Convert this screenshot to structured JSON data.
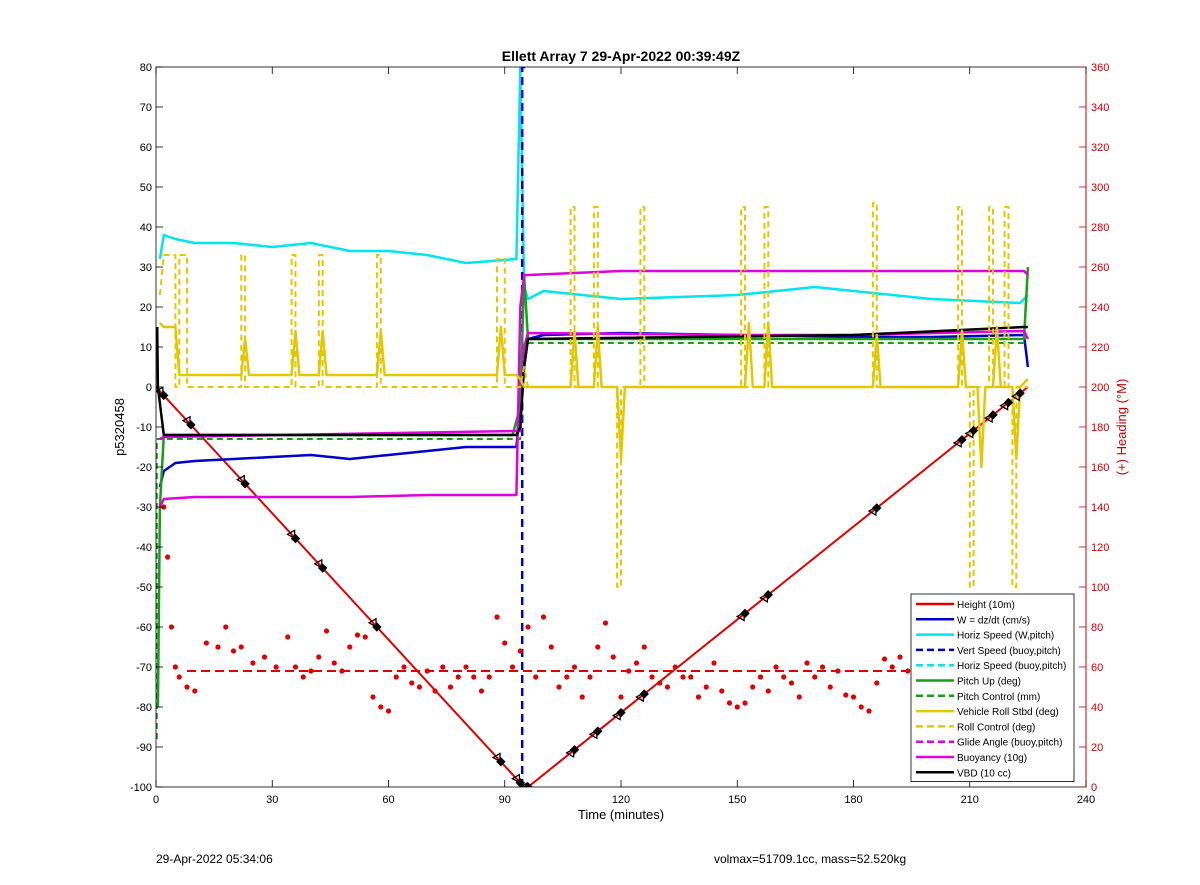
{
  "chart_data": {
    "type": "line",
    "title": "Ellett Array 7 29-Apr-2022 00:39:49Z",
    "xlabel": "Time (minutes)",
    "ylabel_left": "p5320458",
    "ylabel_right": "(+) Heading (°M)",
    "xlim": [
      0,
      240
    ],
    "ylim_left": [
      -100,
      80
    ],
    "ylim_right": [
      0,
      360
    ],
    "x_ticks": [
      "0",
      "30",
      "60",
      "90",
      "120",
      "150",
      "180",
      "210",
      "240"
    ],
    "y_ticks_left": [
      "-100",
      "-90",
      "-80",
      "-70",
      "-60",
      "-50",
      "-40",
      "-30",
      "-20",
      "-10",
      "0",
      "10",
      "20",
      "30",
      "40",
      "50",
      "60",
      "70",
      "80"
    ],
    "y_ticks_right": [
      "0",
      "20",
      "40",
      "60",
      "80",
      "100",
      "120",
      "140",
      "160",
      "180",
      "200",
      "220",
      "240",
      "260",
      "280",
      "300",
      "320",
      "340",
      "360"
    ],
    "grid": false,
    "legend_position": "bottom-right",
    "colors": {
      "red": "#e00000",
      "blue": "#0000cc",
      "cyan": "#00e5ee",
      "green": "#1a9e1a",
      "yellow": "#e5c700",
      "magenta": "#e000e0",
      "black": "#000000",
      "right_axis": "#cc0000"
    },
    "legend": [
      {
        "label": "Height (10m)",
        "color": "#e00000",
        "dashed": false
      },
      {
        "label": "W = dz/dt (cm/s)",
        "color": "#0000cc",
        "dashed": false
      },
      {
        "label": "Horiz Speed (W,pitch)",
        "color": "#00e5ee",
        "dashed": false
      },
      {
        "label": "Vert Speed (buoy,pitch)",
        "color": "#0000cc",
        "dashed": true
      },
      {
        "label": "Horiz Speed (buoy,pitch)",
        "color": "#00e5ee",
        "dashed": true
      },
      {
        "label": "Pitch Up (deg)",
        "color": "#1a9e1a",
        "dashed": false
      },
      {
        "label": "Pitch Control (mm)",
        "color": "#1a9e1a",
        "dashed": true
      },
      {
        "label": "Vehicle Roll Stbd (deg)",
        "color": "#e5c700",
        "dashed": false
      },
      {
        "label": "Roll Control (deg)",
        "color": "#e5c700",
        "dashed": true
      },
      {
        "label": "Glide Angle (buoy,pitch)",
        "color": "#e000e0",
        "dashed": true
      },
      {
        "label": "Buoyancy (10g)",
        "color": "#e000e0",
        "dashed": false
      },
      {
        "label": "VBD (10 cc)",
        "color": "#000000",
        "dashed": false
      }
    ],
    "series": [
      {
        "name": "Height (10m)",
        "color": "#e00000",
        "width": 2,
        "dash": "",
        "x": [
          0,
          95,
          96,
          225
        ],
        "y": [
          0,
          -100,
          -100,
          0
        ]
      },
      {
        "name": "W = dz/dt (cm/s)",
        "color": "#0000cc",
        "width": 2.5,
        "dash": "",
        "x": [
          1,
          2,
          5,
          10,
          20,
          30,
          40,
          50,
          60,
          70,
          80,
          93,
          95,
          96,
          100,
          120,
          150,
          180,
          200,
          224,
          225
        ],
        "y": [
          -25,
          -21,
          -19,
          -18.5,
          -18,
          -17.5,
          -17,
          -18,
          -17,
          -16,
          -15,
          -15,
          5,
          12,
          13,
          13.5,
          13,
          12.5,
          12.5,
          13,
          5
        ]
      },
      {
        "name": "Horiz Speed (W,pitch)",
        "color": "#00e5ee",
        "width": 2.5,
        "dash": "",
        "x": [
          1,
          2,
          5,
          10,
          20,
          30,
          40,
          50,
          60,
          70,
          80,
          93,
          94,
          95,
          96,
          100,
          120,
          150,
          170,
          180,
          200,
          223,
          225
        ],
        "y": [
          32,
          38,
          37,
          36,
          36,
          35,
          36,
          34,
          34,
          33,
          31,
          32,
          80,
          25,
          22,
          24,
          22,
          23,
          25,
          24,
          22,
          21,
          23
        ]
      },
      {
        "name": "Vert Speed (buoy,pitch)",
        "color": "#0000cc",
        "width": 2.5,
        "dash": "8,5",
        "x": [
          94.5,
          94.5,
          95.5
        ],
        "y": [
          -100,
          80,
          80
        ]
      },
      {
        "name": "Pitch Up (deg)",
        "color": "#1a9e1a",
        "width": 2.5,
        "dash": "",
        "x": [
          0.5,
          1,
          2,
          5,
          20,
          50,
          80,
          92,
          94,
          95,
          96,
          100,
          150,
          180,
          224,
          225
        ],
        "y": [
          -80,
          -30,
          -12,
          -12,
          -12,
          -12,
          -12,
          -12,
          -5,
          28,
          12,
          12,
          12,
          12,
          12,
          30
        ]
      },
      {
        "name": "Pitch Control (mm)",
        "color": "#1a9e1a",
        "width": 2,
        "dash": "6,4",
        "x": [
          0.2,
          0.2,
          2,
          94,
          95,
          96,
          224
        ],
        "y": [
          -88,
          -13,
          -13,
          -13,
          8,
          11,
          11
        ]
      },
      {
        "name": "Glide Angle (buoy,pitch)",
        "color": "#e000e0",
        "width": 2.5,
        "dash": "",
        "x": [
          1,
          2,
          10,
          30,
          50,
          70,
          92,
          93,
          94,
          95,
          96,
          120,
          150,
          180,
          224,
          225
        ],
        "y": [
          -30,
          -28,
          -27.5,
          -27.5,
          -27.5,
          -27,
          -27,
          -27,
          20,
          28,
          28,
          29,
          29,
          29,
          29,
          28
        ]
      },
      {
        "name": "Buoyancy (10g)",
        "color": "#e000e0",
        "width": 2.5,
        "dash": "",
        "x": [
          1,
          2,
          93,
          94,
          95,
          96,
          150,
          180,
          224,
          225
        ],
        "y": [
          -13,
          -12.5,
          -11,
          -11,
          10,
          13.5,
          13,
          13,
          14,
          12
        ]
      },
      {
        "name": "VBD (10 cc)",
        "color": "#000000",
        "width": 2.5,
        "dash": "",
        "x": [
          0.3,
          0.5,
          2,
          93,
          94,
          95,
          96,
          180,
          224,
          225
        ],
        "y": [
          15,
          0,
          -12,
          -12,
          -10,
          5,
          12,
          13,
          15,
          15
        ]
      },
      {
        "name": "Vehicle Roll Stbd (deg)",
        "color": "#e5c700",
        "width": 2.5,
        "dash": "",
        "x": [
          1,
          2,
          5,
          6,
          7,
          8,
          22,
          23,
          24,
          35,
          36,
          37,
          42,
          43,
          44,
          57,
          58,
          59,
          88,
          89,
          90,
          93,
          94,
          95,
          96,
          107,
          108,
          109,
          113,
          114,
          115,
          119,
          120,
          121,
          152,
          153,
          154,
          157,
          158,
          159,
          185,
          186,
          187,
          207,
          208,
          209,
          212,
          213,
          214,
          216,
          217,
          218,
          221,
          222,
          223,
          225
        ],
        "y": [
          16,
          15,
          15,
          3,
          3,
          3,
          3,
          12,
          3,
          3,
          14,
          3,
          3,
          14,
          3,
          3,
          14,
          3,
          3,
          15,
          3,
          3,
          2,
          0,
          0,
          0,
          14,
          0,
          0,
          15,
          0,
          0,
          -18,
          0,
          0,
          16,
          0,
          0,
          16,
          0,
          0,
          13,
          0,
          0,
          14,
          0,
          0,
          -20,
          0,
          0,
          15,
          0,
          0,
          -18,
          0,
          2
        ]
      },
      {
        "name": "Roll Control (deg)",
        "color": "#e5c700",
        "width": 2,
        "dash": "6,4",
        "x": [
          1,
          2,
          5,
          5,
          6,
          6,
          8,
          8,
          9,
          9,
          22,
          22,
          23,
          23,
          35,
          35,
          36,
          36,
          42,
          42,
          43,
          43,
          57,
          57,
          58,
          58,
          88,
          88,
          90,
          90,
          93,
          94,
          95,
          96,
          107,
          107,
          108,
          108,
          113,
          113,
          114,
          114,
          119,
          119,
          120,
          120,
          125,
          125,
          126,
          126,
          151,
          151,
          152,
          152,
          157,
          157,
          158,
          158,
          185,
          185,
          186,
          186,
          207,
          207,
          208,
          208,
          210,
          210,
          211,
          211,
          215,
          215,
          216,
          216,
          219,
          219,
          220,
          220,
          221,
          221,
          222,
          222,
          225
        ],
        "y": [
          23,
          33,
          33,
          0,
          0,
          33,
          33,
          0,
          0,
          0,
          0,
          33,
          33,
          0,
          0,
          33,
          33,
          0,
          0,
          33,
          33,
          0,
          0,
          33,
          33,
          0,
          0,
          32,
          32,
          0,
          0,
          0,
          5,
          0,
          0,
          45,
          45,
          0,
          0,
          45,
          45,
          0,
          0,
          -50,
          -50,
          0,
          0,
          45,
          45,
          0,
          0,
          45,
          45,
          0,
          0,
          45,
          45,
          0,
          0,
          46,
          46,
          0,
          0,
          45,
          45,
          0,
          0,
          -50,
          -50,
          0,
          0,
          45,
          45,
          0,
          0,
          45,
          45,
          0,
          0,
          -50,
          -50,
          0,
          0
        ]
      }
    ],
    "heading_series": {
      "name": "(+) Heading (°M)",
      "color": "#e00000",
      "x": [
        2,
        3,
        4,
        5,
        6,
        8,
        10,
        13,
        16,
        18,
        20,
        22,
        25,
        28,
        31,
        34,
        36,
        38,
        40,
        42,
        44,
        46,
        48,
        50,
        52,
        54,
        56,
        58,
        60,
        62,
        64,
        66,
        68,
        70,
        72,
        74,
        76,
        78,
        80,
        82,
        84,
        86,
        88,
        90,
        92,
        94,
        96,
        98,
        100,
        102,
        104,
        106,
        108,
        110,
        112,
        114,
        116,
        118,
        120,
        122,
        124,
        126,
        128,
        130,
        132,
        134,
        136,
        138,
        140,
        142,
        144,
        146,
        148,
        150,
        152,
        154,
        156,
        158,
        160,
        162,
        164,
        166,
        168,
        170,
        172,
        174,
        176,
        178,
        180,
        182,
        184,
        186,
        188,
        190,
        192,
        194,
        196,
        198,
        200,
        202,
        204,
        206,
        208,
        210,
        212,
        214,
        216,
        218,
        220,
        222,
        224
      ],
      "y": [
        140,
        115,
        80,
        60,
        55,
        50,
        48,
        72,
        70,
        80,
        68,
        70,
        62,
        65,
        60,
        75,
        60,
        55,
        58,
        65,
        78,
        62,
        58,
        70,
        76,
        75,
        45,
        40,
        38,
        55,
        60,
        52,
        50,
        58,
        48,
        60,
        50,
        55,
        60,
        55,
        48,
        55,
        85,
        72,
        60,
        68,
        80,
        55,
        85,
        70,
        50,
        55,
        60,
        45,
        55,
        70,
        82,
        65,
        45,
        58,
        62,
        70,
        55,
        52,
        50,
        60,
        55,
        55,
        45,
        50,
        62,
        48,
        42,
        40,
        42,
        50,
        55,
        48,
        60,
        55,
        52,
        45,
        62,
        55,
        60,
        50,
        58,
        46,
        45,
        40,
        38,
        52,
        64,
        60,
        65,
        58,
        55,
        50,
        45,
        55,
        62,
        60,
        48,
        58,
        55,
        52,
        60,
        48,
        55,
        50,
        58
      ]
    },
    "heading_mean": 58,
    "markers": {
      "x": [
        1,
        2,
        8,
        9,
        22,
        23,
        35,
        36,
        42,
        43,
        56,
        57,
        88,
        89,
        93,
        94,
        95,
        96,
        107,
        108,
        113,
        114,
        119,
        120,
        125,
        126,
        151,
        152,
        157,
        158,
        185,
        186,
        207,
        208,
        210,
        211,
        215,
        216,
        219,
        220,
        222,
        223
      ]
    }
  },
  "footer": {
    "timestamp": "29-Apr-2022 05:34:06",
    "info": "volmax=51709.1cc, mass=52.520kg"
  }
}
